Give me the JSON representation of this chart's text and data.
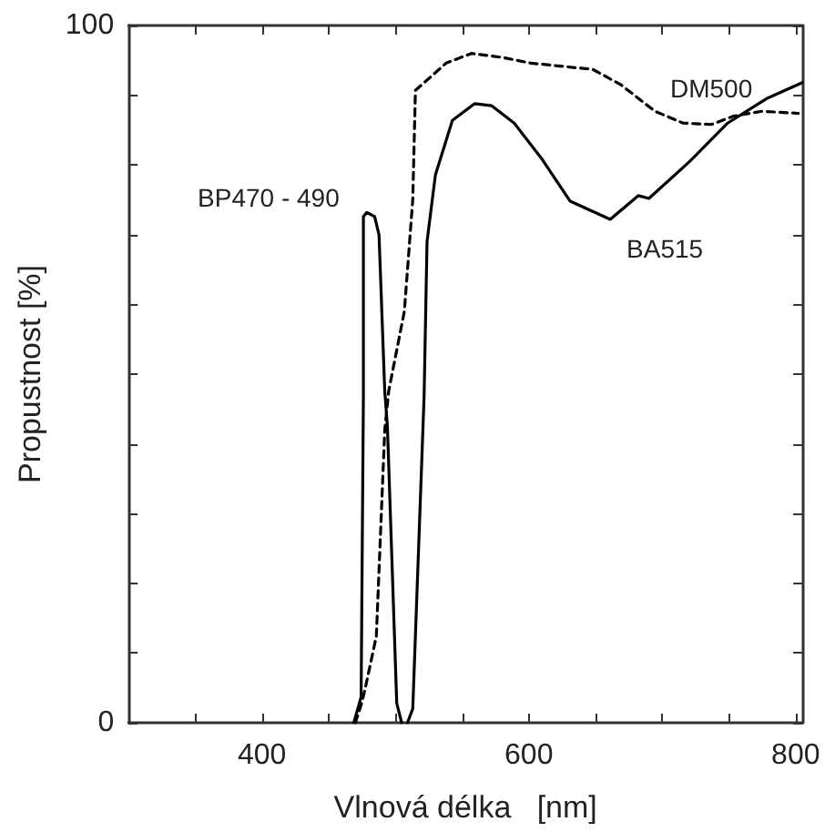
{
  "chart_data": {
    "type": "line",
    "xlabel": "Vlnová délka   [nm]",
    "ylabel": "Propustnost [%]",
    "xlim": [
      300,
      805
    ],
    "xticks": [
      {
        "value": 350,
        "label": null
      },
      400,
      {
        "value": 450,
        "label": null
      },
      {
        "value": 500,
        "label": null
      },
      {
        "value": 550,
        "label": null
      },
      600,
      {
        "value": 650,
        "label": null
      },
      {
        "value": 700,
        "label": null
      },
      {
        "value": 750,
        "label": null
      },
      800
    ],
    "ylim": [
      0,
      100
    ],
    "yticks": [
      0,
      {
        "value": 10,
        "label": null
      },
      {
        "value": 20,
        "label": null
      },
      {
        "value": 30,
        "label": null
      },
      {
        "value": 40,
        "label": null
      },
      {
        "value": 50,
        "label": null
      },
      {
        "value": 60,
        "label": null
      },
      {
        "value": 70,
        "label": null
      },
      {
        "value": 80,
        "label": null
      },
      {
        "value": 90,
        "label": null
      },
      100
    ],
    "grid": false,
    "legend": false,
    "marker": "none",
    "series": [
      {
        "name": "BP470 - 490",
        "color": "#000000",
        "line_style": "solid",
        "x": [
          468.8,
          474.3,
          476,
          476,
          478.5,
          484.4,
          487.7,
          492,
          494,
          501,
          504.7
        ],
        "values": [
          0,
          3.7,
          46.8,
          72.6,
          73.2,
          72.6,
          70,
          47.6,
          42.5,
          2.8,
          0
        ]
      },
      {
        "name": "BA515",
        "color": "#000000",
        "line_style": "solid",
        "x": [
          509,
          513,
          521.5,
          523.7,
          530,
          542.7,
          559.5,
          572,
          589,
          610,
          631,
          646,
          661,
          682,
          690,
          720,
          749,
          779,
          805
        ],
        "values": [
          0,
          2,
          46.8,
          69,
          78.6,
          86.4,
          88.8,
          88.5,
          86,
          80.8,
          74.8,
          73.5,
          72.2,
          75.6,
          75.2,
          80.4,
          86,
          89.6,
          91.8
        ]
      },
      {
        "name": "DM500",
        "color": "#000000",
        "line_style": "dashed",
        "x": [
          470,
          474.7,
          477,
          485.7,
          492,
          495,
          506.7,
          513,
          515,
          538,
          557,
          580.6,
          601.6,
          648,
          669,
          694.5,
          715.6,
          736.7,
          753.6,
          774.7,
          802
        ],
        "values": [
          0,
          2.8,
          4.6,
          12.4,
          42,
          47.6,
          59,
          75,
          90.7,
          94.6,
          96,
          95.4,
          94.6,
          93.7,
          91.5,
          87.7,
          86,
          85.8,
          87,
          87.7,
          87.4
        ]
      }
    ]
  }
}
